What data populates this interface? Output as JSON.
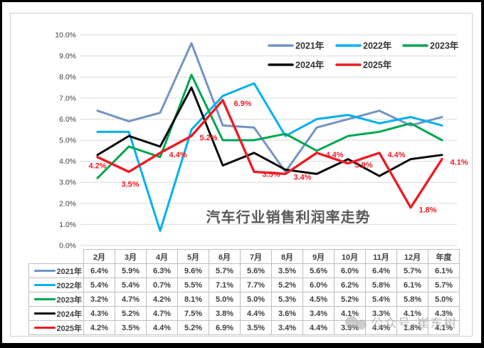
{
  "watermark": {
    "text": "公众号·崔东树",
    "icon": "overlapping-circles-logo",
    "color": "#ababab"
  },
  "colors": {
    "frame": "#000000",
    "card_border": "#d2d2d2",
    "grid": "#dadada",
    "axis_text": "#404040",
    "title_text": "#595959",
    "legend_text": "#333333",
    "table_border": "#bfbfbf",
    "table_text": "#404040"
  },
  "chart_data": {
    "type": "line",
    "title": "汽车行业销售利润率走势",
    "categories": [
      "2月",
      "3月",
      "4月",
      "5月",
      "6月",
      "7月",
      "8月",
      "9月",
      "10月",
      "11月",
      "12月",
      "年度"
    ],
    "ylim": [
      0,
      10
    ],
    "ytick_step": 1,
    "ytick_labels": [
      "0.0%",
      "1.0%",
      "2.0%",
      "3.0%",
      "4.0%",
      "5.0%",
      "6.0%",
      "7.0%",
      "8.0%",
      "9.0%",
      "10.0%"
    ],
    "grid": true,
    "legend_position": "inside-top-right",
    "legend_rows": [
      [
        "2021年",
        "2022年",
        "2023年"
      ],
      [
        "2024年",
        "2025年"
      ]
    ],
    "series": [
      {
        "name": "2021年",
        "color": "#7195c5",
        "values": [
          6.4,
          5.9,
          6.3,
          9.6,
          5.7,
          5.6,
          3.5,
          5.6,
          6.0,
          6.4,
          5.7,
          6.1
        ],
        "cells": [
          "6.4%",
          "5.9%",
          "6.3%",
          "9.6%",
          "5.7%",
          "5.6%",
          "3.5%",
          "5.6%",
          "6.0%",
          "6.4%",
          "5.7%",
          "6.1%"
        ]
      },
      {
        "name": "2022年",
        "color": "#00b0f0",
        "values": [
          5.4,
          5.4,
          0.7,
          5.5,
          7.1,
          7.7,
          5.2,
          6.0,
          6.2,
          5.8,
          6.1,
          5.7
        ],
        "cells": [
          "5.4%",
          "5.4%",
          "0.7%",
          "5.5%",
          "7.1%",
          "7.7%",
          "5.2%",
          "6.0%",
          "6.2%",
          "5.8%",
          "6.1%",
          "5.7%"
        ]
      },
      {
        "name": "2023年",
        "color": "#00a651",
        "values": [
          3.2,
          4.7,
          4.2,
          8.1,
          5.0,
          5.0,
          5.3,
          4.5,
          5.2,
          5.4,
          5.8,
          5.0
        ],
        "cells": [
          "3.2%",
          "4.7%",
          "4.2%",
          "8.1%",
          "5.0%",
          "5.0%",
          "5.3%",
          "4.5%",
          "5.2%",
          "5.4%",
          "5.8%",
          "5.0%"
        ]
      },
      {
        "name": "2024年",
        "color": "#0a0a0a",
        "values": [
          4.3,
          5.2,
          4.7,
          7.5,
          3.8,
          4.4,
          3.6,
          3.4,
          4.1,
          3.3,
          4.1,
          4.3
        ],
        "cells": [
          "4.3%",
          "5.2%",
          "4.7%",
          "7.5%",
          "3.8%",
          "4.4%",
          "3.6%",
          "3.4%",
          "4.1%",
          "3.3%",
          "4.1%",
          "4.3%"
        ]
      },
      {
        "name": "2025年",
        "color": "#ed1c24",
        "values": [
          4.2,
          3.5,
          4.4,
          5.2,
          6.9,
          3.5,
          3.4,
          4.4,
          3.9,
          4.4,
          1.8,
          4.1
        ],
        "cells": [
          "4.2%",
          "3.5%",
          "4.4%",
          "5.2%",
          "6.9%",
          "3.5%",
          "3.4%",
          "4.4%",
          "3.9%",
          "4.4%",
          "1.8%",
          "4.1%"
        ],
        "data_labels": [
          "4.2%",
          "3.5%",
          "4.4%",
          "5.2%",
          "6.9%",
          "3.5%",
          "3.4%",
          "4.4%",
          "3.9%",
          "4.4%",
          "1.8%",
          "4.1%"
        ],
        "label_color": "#ed1c24",
        "label_offsets": [
          [
            0,
            16
          ],
          [
            2,
            21
          ],
          [
            25,
            6
          ],
          [
            24,
            6
          ],
          [
            28,
            8
          ],
          [
            24,
            7
          ],
          [
            24,
            8
          ],
          [
            25,
            6
          ],
          [
            22,
            6
          ],
          [
            24,
            6
          ],
          [
            24,
            7
          ],
          [
            24,
            8
          ]
        ]
      }
    ]
  }
}
